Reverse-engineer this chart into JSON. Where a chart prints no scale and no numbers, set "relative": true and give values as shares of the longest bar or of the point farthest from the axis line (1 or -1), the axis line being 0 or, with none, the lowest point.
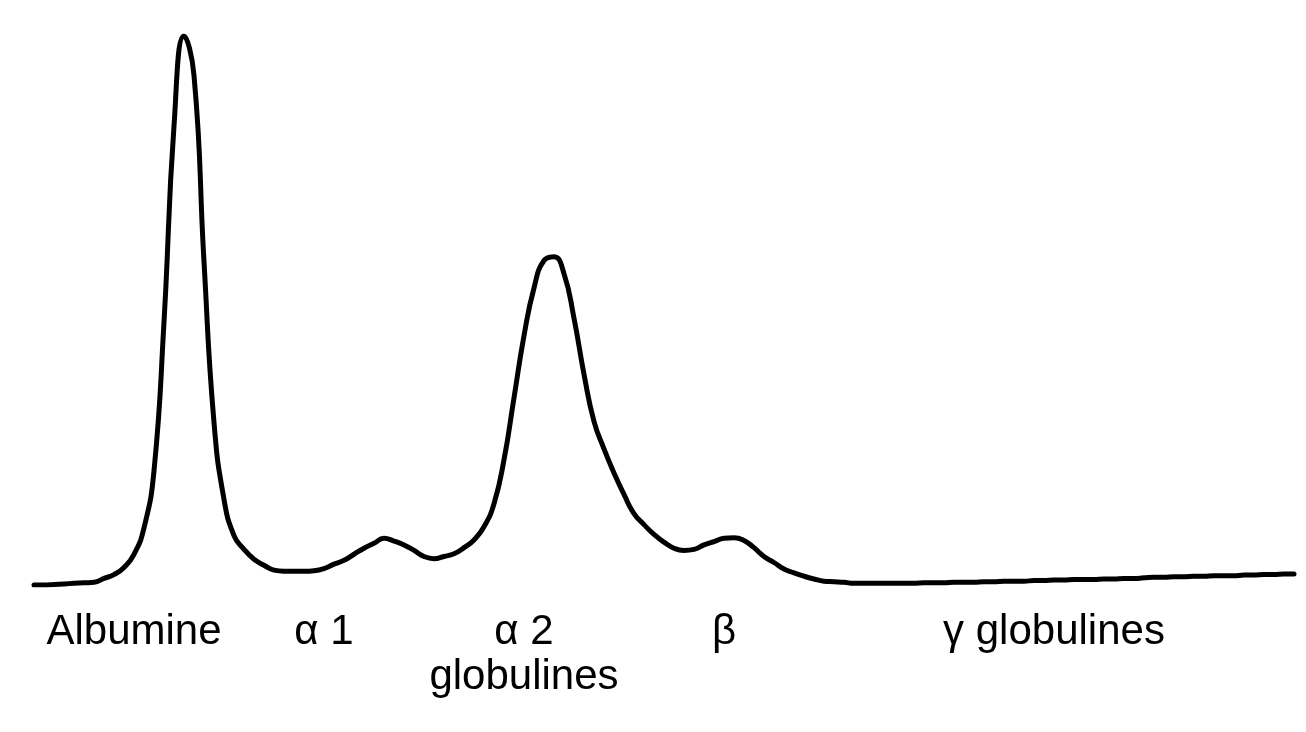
{
  "chart_data": {
    "type": "line",
    "relative": true,
    "tick_labels": "x",
    "color": "#000000",
    "categories": [
      null,
      null,
      null,
      null,
      null,
      null,
      null,
      null,
      null,
      null,
      "Albumine",
      null,
      null,
      null,
      null,
      null,
      null,
      null,
      null,
      null,
      null,
      null,
      null,
      null,
      null,
      null,
      null,
      null,
      null,
      "α 1",
      null,
      null,
      null,
      null,
      null,
      null,
      null,
      null,
      null,
      null,
      null,
      null,
      null,
      null,
      null,
      null,
      null,
      null,
      null,
      "α 2\nglobulines",
      null,
      null,
      null,
      null,
      null,
      null,
      null,
      null,
      null,
      null,
      null,
      null,
      null,
      null,
      null,
      null,
      null,
      null,
      null,
      "β",
      null,
      null,
      null,
      null,
      null,
      null,
      null,
      null,
      null,
      null,
      null,
      null,
      null,
      null,
      null,
      null,
      null,
      null,
      null,
      null,
      null,
      null,
      null,
      null,
      null,
      null,
      null,
      null,
      null,
      null,
      null,
      null,
      "γ globulines",
      null,
      null,
      null,
      null,
      null,
      null,
      null,
      null,
      null,
      null,
      null,
      null,
      null,
      null,
      null,
      null,
      null,
      null,
      null,
      null,
      null,
      null,
      null,
      null
    ],
    "values": [
      0,
      0,
      0.001,
      0.002,
      0.003,
      0.004,
      0.005,
      0.012,
      0.019,
      0.032,
      0.056,
      0.104,
      0.208,
      0.479,
      0.836,
      1,
      0.928,
      0.589,
      0.296,
      0.156,
      0.09,
      0.065,
      0.047,
      0.036,
      0.027,
      0.025,
      0.025,
      0.025,
      0.026,
      0.03,
      0.038,
      0.045,
      0.056,
      0.067,
      0.076,
      0.085,
      0.08,
      0.073,
      0.063,
      0.052,
      0.048,
      0.052,
      0.057,
      0.068,
      0.082,
      0.106,
      0.148,
      0.228,
      0.341,
      0.454,
      0.541,
      0.591,
      0.598,
      0.567,
      0.486,
      0.384,
      0.298,
      0.248,
      0.204,
      0.165,
      0.13,
      0.11,
      0.092,
      0.078,
      0.067,
      0.063,
      0.065,
      0.073,
      0.079,
      0.085,
      0.086,
      0.081,
      0.068,
      0.052,
      0.041,
      0.029,
      0.022,
      0.016,
      0.011,
      0.007,
      0.006,
      0.005,
      0.003,
      0.003,
      0.003,
      0.003,
      0.003,
      0.003,
      0.003,
      0.004,
      0.004,
      0.004,
      0.005,
      0.005,
      0.005,
      0.006,
      0.006,
      0.007,
      0.007,
      0.007,
      0.008,
      0.008,
      0.009,
      0.009,
      0.01,
      0.01,
      0.01,
      0.011,
      0.011,
      0.012,
      0.012,
      0.013,
      0.014,
      0.014,
      0.015,
      0.015,
      0.016,
      0.016,
      0.017,
      0.017,
      0.017,
      0.018,
      0.018,
      0.019,
      0.019,
      0.02,
      0.02
    ]
  }
}
